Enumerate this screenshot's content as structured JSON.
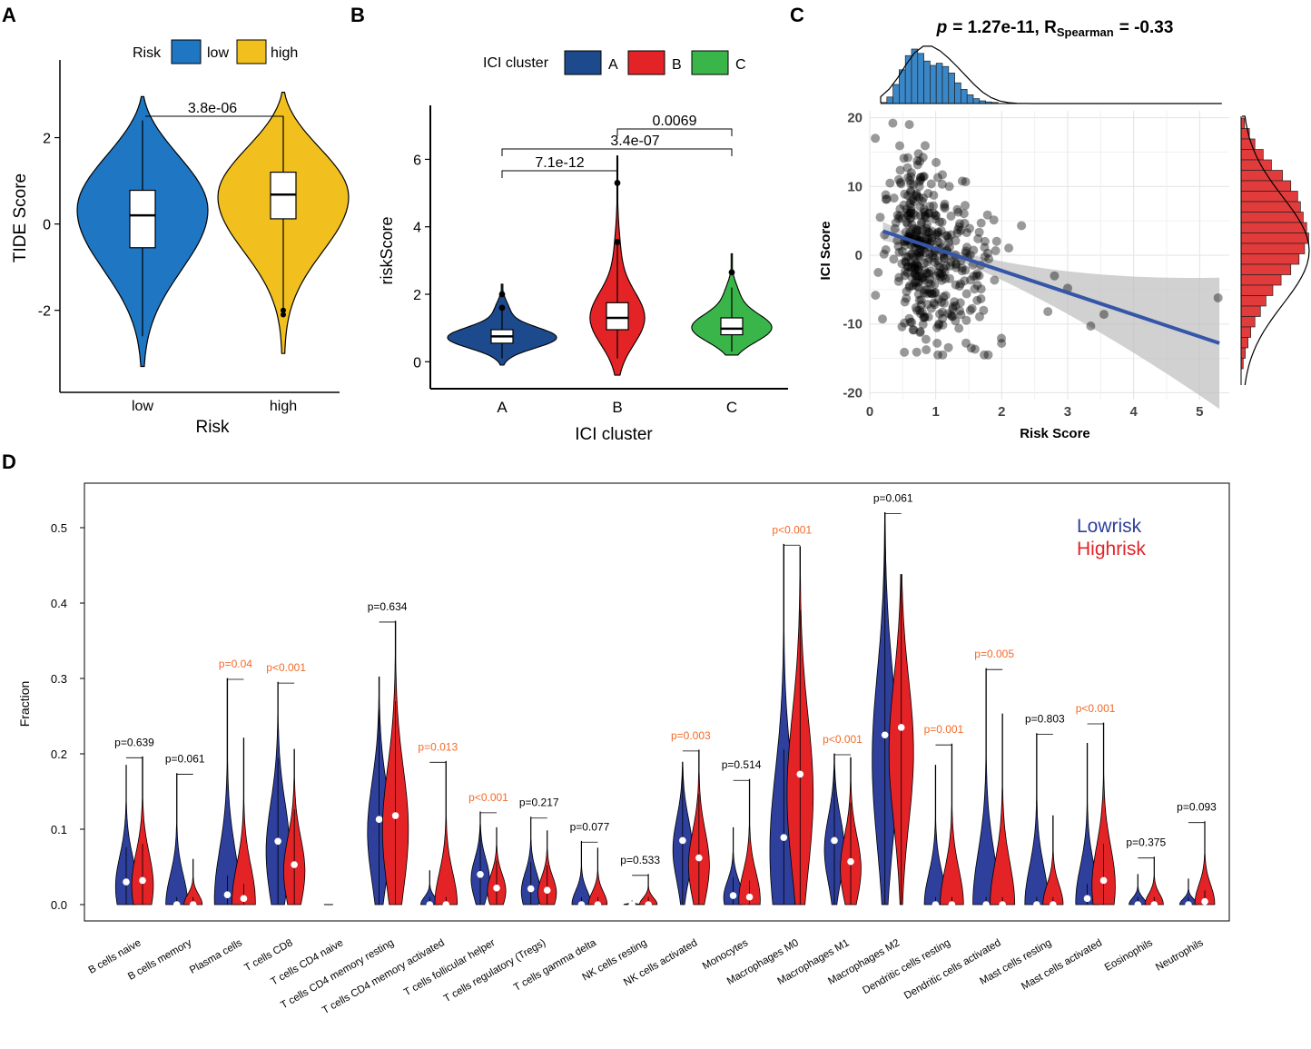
{
  "panel_labels": {
    "a": "A",
    "b": "B",
    "c": "C",
    "d": "D"
  },
  "colors": {
    "low": "#1f77c4",
    "high": "#f2c01e",
    "clusterA": "#1d4a8c",
    "clusterB": "#e32326",
    "clusterC": "#3ab54a",
    "hist_top": "#3a87c8",
    "hist_right": "#e23b3b",
    "reg_line": "#3455a8",
    "lowrisk": "#2e3f9c",
    "highrisk": "#e32326",
    "sig": "#f26b2a"
  },
  "chart_data": [
    {
      "id": "A",
      "type": "violin",
      "title": "",
      "legend": {
        "title": "Risk",
        "entries": [
          "low",
          "high"
        ]
      },
      "xlabel": "Risk",
      "ylabel": "TIDE Score",
      "categories": [
        "low",
        "high"
      ],
      "ylim": [
        -3.9,
        3.8
      ],
      "yticks": [
        -2,
        0,
        2
      ],
      "ytick_labels": [
        "-2",
        "0",
        "2"
      ],
      "series": [
        {
          "name": "low",
          "min": -3.3,
          "max": 2.95,
          "q1": -0.55,
          "median": 0.2,
          "q3": 0.78,
          "whisker_low": -2.6,
          "whisker_high": 2.4
        },
        {
          "name": "high",
          "min": -3.0,
          "max": 3.05,
          "q1": 0.12,
          "median": 0.68,
          "q3": 1.2,
          "whisker_low": -2.1,
          "whisker_high": 2.5,
          "outliers": [
            -2.0,
            -2.1
          ]
        }
      ],
      "comparisons": [
        {
          "from": "low",
          "to": "high",
          "label": "3.8e-06"
        }
      ]
    },
    {
      "id": "B",
      "type": "violin",
      "legend": {
        "title": "ICI cluster",
        "entries": [
          "A",
          "B",
          "C"
        ]
      },
      "xlabel": "ICI cluster",
      "ylabel": "riskScore",
      "categories": [
        "A",
        "B",
        "C"
      ],
      "ylim": [
        -0.8,
        7.6
      ],
      "yticks": [
        0,
        2,
        4,
        6
      ],
      "ytick_labels": [
        "0",
        "2",
        "4",
        "6"
      ],
      "series": [
        {
          "name": "A",
          "min": -0.1,
          "max": 2.3,
          "q1": 0.55,
          "median": 0.75,
          "q3": 0.95,
          "whisker_low": 0.1,
          "whisker_high": 1.6,
          "outliers": [
            1.6,
            2.0
          ]
        },
        {
          "name": "B",
          "min": -0.4,
          "max": 6.1,
          "q1": 0.95,
          "median": 1.3,
          "q3": 1.75,
          "whisker_low": 0.1,
          "whisker_high": 3.5,
          "outliers": [
            3.55,
            5.3
          ]
        },
        {
          "name": "C",
          "min": 0.2,
          "max": 3.2,
          "q1": 0.8,
          "median": 0.98,
          "q3": 1.3,
          "whisker_low": 0.3,
          "whisker_high": 2.2,
          "outliers": [
            2.65
          ]
        }
      ],
      "comparisons": [
        {
          "from": "B",
          "to": "C",
          "label": "0.0069",
          "level": 3
        },
        {
          "from": "A",
          "to": "C",
          "label": "3.4e-07",
          "level": 2
        },
        {
          "from": "A",
          "to": "B",
          "label": "7.1e-12",
          "level": 1
        }
      ]
    },
    {
      "id": "C",
      "type": "scatter",
      "title_p": "p",
      "title_rest": "= 1.27e-11, R",
      "title_sub": "Spearman",
      "title_end": "= -0.33",
      "xlabel": "Risk Score",
      "ylabel": "ICI Score",
      "xlim": [
        0,
        5.45
      ],
      "ylim": [
        -21,
        21
      ],
      "xticks": [
        0,
        1,
        2,
        3,
        4,
        5
      ],
      "xtick_labels": [
        "0",
        "1",
        "2",
        "3",
        "4",
        "5"
      ],
      "yticks": [
        -20,
        -10,
        0,
        10,
        20
      ],
      "ytick_labels": [
        "-20",
        "-10",
        "0",
        "10",
        "20"
      ],
      "regression": {
        "x0": 0.2,
        "y0": 3.5,
        "x1": 5.3,
        "y1": -12.8
      },
      "n_points": 420,
      "outlier_points": [
        [
          5.28,
          -6.2
        ],
        [
          0.35,
          19.2
        ],
        [
          0.6,
          19.0
        ],
        [
          2.3,
          4.3
        ],
        [
          2.7,
          -8.2
        ],
        [
          2.8,
          -3.0
        ],
        [
          3.0,
          -4.8
        ],
        [
          3.55,
          -8.6
        ],
        [
          3.35,
          -10.3
        ]
      ],
      "top_histogram": [
        0.02,
        0.12,
        0.35,
        0.62,
        0.88,
        1.0,
        0.92,
        0.78,
        0.7,
        0.74,
        0.68,
        0.56,
        0.38,
        0.26,
        0.16,
        0.09,
        0.05,
        0.03,
        0.02
      ],
      "right_histogram": [
        0.05,
        0.12,
        0.2,
        0.32,
        0.44,
        0.6,
        0.72,
        0.82,
        0.86,
        0.9,
        0.95,
        0.98,
        0.92,
        0.84,
        0.72,
        0.58,
        0.46,
        0.36,
        0.28,
        0.2,
        0.14,
        0.1,
        0.06,
        0.03
      ]
    },
    {
      "id": "D",
      "type": "split-violin",
      "ylabel": "Fraction",
      "ylim": [
        -0.02,
        0.56
      ],
      "yticks": [
        0.0,
        0.1,
        0.2,
        0.3,
        0.4,
        0.5
      ],
      "ytick_labels": [
        "0.0",
        "0.1",
        "0.2",
        "0.3",
        "0.4",
        "0.5"
      ],
      "legend": [
        "Lowrisk",
        "Highrisk"
      ],
      "categories": [
        "B cells naive",
        "B cells memory",
        "Plasma cells",
        "T cells CD8",
        "T cells CD4 naive",
        "T cells CD4 memory resting",
        "T cells CD4 memory activated",
        "T cells follicular helper",
        "T cells regulatory (Tregs)",
        "T cells gamma delta",
        "NK cells resting",
        "NK cells activated",
        "Monocytes",
        "Macrophages M0",
        "Macrophages M1",
        "Macrophages M2",
        "Dendritic cells resting",
        "Dendritic cells activated",
        "Mast cells resting",
        "Mast cells activated",
        "Eosinophils",
        "Neutrophils"
      ],
      "pvalues": [
        "p=0.639",
        "p=0.061",
        "p=0.04",
        "p<0.001",
        "",
        "p=0.634",
        "p=0.013",
        "p<0.001",
        "p=0.217",
        "p=0.077",
        "p=0.533",
        "p=0.003",
        "p=0.514",
        "p<0.001",
        "p<0.001",
        "p=0.061",
        "p=0.001",
        "p=0.005",
        "p=0.803",
        "p<0.001",
        "p=0.375",
        "p=0.093"
      ],
      "significant": [
        false,
        false,
        true,
        true,
        false,
        false,
        true,
        true,
        false,
        false,
        false,
        true,
        false,
        true,
        true,
        false,
        true,
        true,
        false,
        true,
        false,
        false
      ],
      "series": [
        {
          "name": "Lowrisk",
          "max": [
            0.185,
            0.174,
            0.3,
            0.295,
            0.0,
            0.302,
            0.045,
            0.123,
            0.116,
            0.084,
            0.005,
            0.189,
            0.102,
            0.478,
            0.2,
            0.52,
            0.185,
            0.313,
            0.227,
            0.214,
            0.04,
            0.034
          ],
          "median": [
            0.03,
            0.0,
            0.013,
            0.084,
            0.0,
            0.113,
            0.0,
            0.04,
            0.021,
            0.0,
            0.0,
            0.085,
            0.012,
            0.089,
            0.085,
            0.225,
            0.0,
            0.0,
            0.0,
            0.008,
            0.0,
            0.0
          ]
        },
        {
          "name": "Highrisk",
          "max": [
            0.196,
            0.06,
            0.221,
            0.206,
            0.0,
            0.376,
            0.19,
            0.102,
            0.098,
            0.075,
            0.04,
            0.205,
            0.166,
            0.475,
            0.195,
            0.438,
            0.213,
            0.253,
            0.118,
            0.241,
            0.063,
            0.11
          ],
          "median": [
            0.032,
            0.0,
            0.008,
            0.053,
            0.0,
            0.118,
            0.0,
            0.022,
            0.019,
            0.0,
            0.0,
            0.062,
            0.01,
            0.173,
            0.057,
            0.235,
            0.0,
            0.0,
            0.0,
            0.032,
            0.0,
            0.004
          ]
        }
      ]
    }
  ]
}
